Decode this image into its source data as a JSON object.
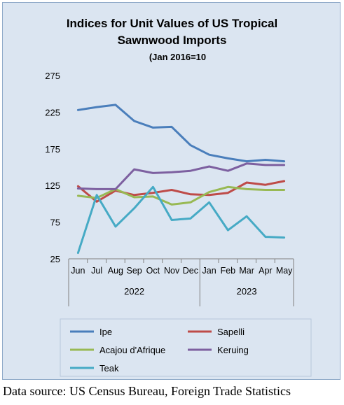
{
  "chart_data": {
    "type": "line",
    "title": "Indices for Unit Values of US Tropical Sawnwood Imports",
    "title_lines": [
      "Indices for Unit Values of US Tropical",
      "Sawnwood Imports"
    ],
    "subtitle": "(Jan 2016=10",
    "x": [
      "Jun",
      "Jul",
      "Aug",
      "Sep",
      "Oct",
      "Nov",
      "Dec",
      "Jan",
      "Feb",
      "Mar",
      "Apr",
      "May"
    ],
    "year_groups": [
      {
        "label": "2022",
        "count": 7
      },
      {
        "label": "2023",
        "count": 5
      }
    ],
    "ylim": [
      25,
      275
    ],
    "yticks": [
      25,
      75,
      125,
      175,
      225,
      275
    ],
    "grid": false,
    "legend_position": "bottom",
    "series": [
      {
        "name": "Ipe",
        "color": "#4a7ebb",
        "values": [
          228,
          232,
          235,
          213,
          204,
          205,
          180,
          167,
          162,
          158,
          160,
          158
        ]
      },
      {
        "name": "Sapelli",
        "color": "#be4b48",
        "values": [
          124,
          103,
          118,
          112,
          115,
          119,
          113,
          112,
          115,
          129,
          126,
          131
        ]
      },
      {
        "name": "Acajou d'Afrique",
        "color": "#98b954",
        "values": [
          111,
          108,
          120,
          109,
          110,
          99,
          102,
          116,
          123,
          120,
          119,
          119
        ]
      },
      {
        "name": "Keruing",
        "color": "#7d60a0",
        "values": [
          121,
          120,
          120,
          147,
          142,
          143,
          145,
          151,
          145,
          155,
          153,
          153
        ]
      },
      {
        "name": "Teak",
        "color": "#46aac5",
        "values": [
          33,
          112,
          69,
          94,
          123,
          78,
          80,
          102,
          64,
          83,
          55,
          54
        ]
      }
    ]
  },
  "source_note": "Data source: US Census Bureau, Foreign Trade Statistics"
}
